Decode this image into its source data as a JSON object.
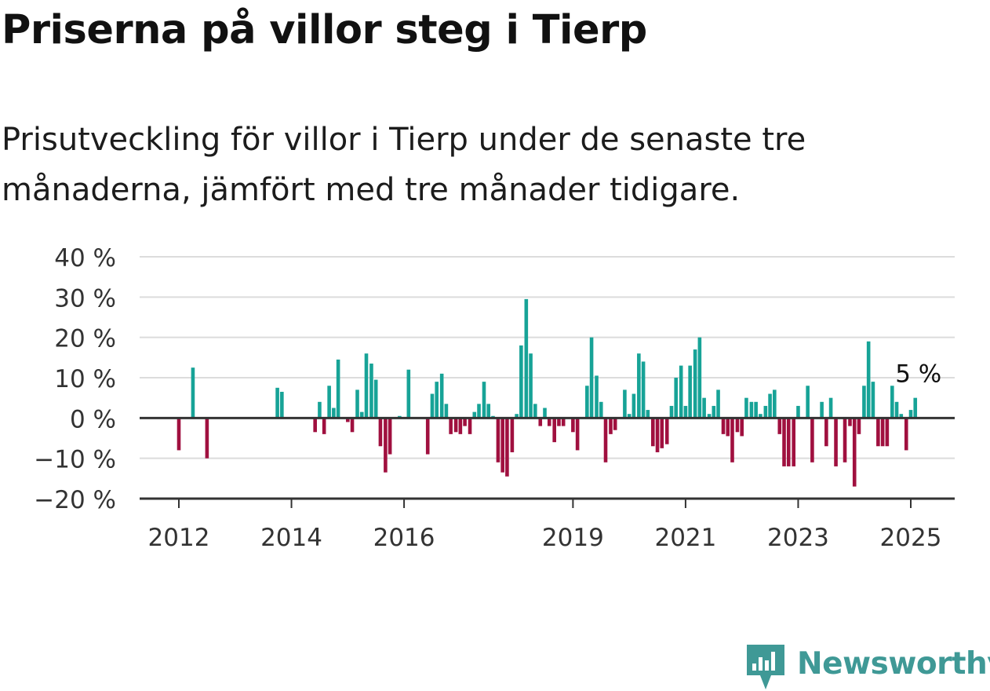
{
  "title": "Priserna på villor steg i Tierp",
  "subtitle": "Prisutveckling för villor i Tierp under de senaste tre månaderna, jämfört med tre månader tidigare.",
  "brand": "Newsworthy",
  "colors": {
    "positive": "#17a397",
    "negative": "#a0103f",
    "grid": "#dcdcdc",
    "axis": "#333333",
    "brand": "#3f9996"
  },
  "chart_data": {
    "type": "bar",
    "ylim": [
      -20,
      40
    ],
    "yticks": [
      40,
      30,
      20,
      10,
      0,
      -10,
      -20
    ],
    "ytick_labels": [
      "40 %",
      "30 %",
      "20 %",
      "10 %",
      "0 %",
      "−10 %",
      "−20 %"
    ],
    "xtick_labels": [
      "2012",
      "2014",
      "2016",
      "2019",
      "2021",
      "2023",
      "2025"
    ],
    "xtick_values": [
      2012.0,
      2014.0,
      2016.0,
      2019.0,
      2021.0,
      2023.0,
      2025.0
    ],
    "x_range": [
      2010.75,
      2025.75
    ],
    "grid": true,
    "annotation": "5 %",
    "unit": "decimal year",
    "x": [
      2012.0,
      2012.25,
      2012.5,
      2013.75,
      2013.83,
      2014.42,
      2014.5,
      2014.58,
      2014.67,
      2014.75,
      2014.83,
      2015.0,
      2015.08,
      2015.17,
      2015.25,
      2015.33,
      2015.42,
      2015.5,
      2015.58,
      2015.67,
      2015.75,
      2015.92,
      2016.08,
      2016.42,
      2016.5,
      2016.58,
      2016.67,
      2016.75,
      2016.83,
      2016.92,
      2017.0,
      2017.08,
      2017.17,
      2017.25,
      2017.33,
      2017.42,
      2017.5,
      2017.58,
      2017.67,
      2017.75,
      2017.83,
      2017.92,
      2018.0,
      2018.08,
      2018.17,
      2018.25,
      2018.33,
      2018.42,
      2018.5,
      2018.58,
      2018.67,
      2018.75,
      2018.83,
      2019.0,
      2019.08,
      2019.25,
      2019.33,
      2019.42,
      2019.5,
      2019.58,
      2019.67,
      2019.75,
      2019.92,
      2020.0,
      2020.08,
      2020.17,
      2020.25,
      2020.33,
      2020.42,
      2020.5,
      2020.58,
      2020.67,
      2020.75,
      2020.83,
      2020.92,
      2021.0,
      2021.08,
      2021.17,
      2021.25,
      2021.33,
      2021.42,
      2021.5,
      2021.58,
      2021.67,
      2021.75,
      2021.83,
      2021.92,
      2022.0,
      2022.08,
      2022.17,
      2022.25,
      2022.33,
      2022.42,
      2022.5,
      2022.58,
      2022.67,
      2022.75,
      2022.83,
      2022.92,
      2023.0,
      2023.17,
      2023.25,
      2023.42,
      2023.5,
      2023.58,
      2023.67,
      2023.83,
      2023.92,
      2024.0,
      2024.08,
      2024.17,
      2024.25,
      2024.33,
      2024.42,
      2024.5,
      2024.58,
      2024.67,
      2024.75,
      2024.83,
      2024.92,
      2025.0,
      2025.08
    ],
    "values": [
      -8,
      12.5,
      -10,
      7.5,
      6.5,
      -3.5,
      4,
      -4,
      8,
      2.5,
      14.5,
      -1,
      -3.5,
      7,
      1.5,
      16,
      13.5,
      9.5,
      -7,
      -13.5,
      -9,
      0.5,
      12,
      -9,
      6,
      9,
      11,
      3.5,
      -4,
      -3.5,
      -4,
      -2,
      -4,
      1.5,
      3.5,
      9,
      3.5,
      0.5,
      -11,
      -13.5,
      -14.5,
      -8.5,
      1,
      18,
      29.5,
      16,
      3.5,
      -2,
      2.5,
      -2,
      -6,
      -2,
      -2,
      -3.5,
      -8,
      8,
      20,
      10.5,
      4,
      -11,
      -4,
      -3,
      7,
      1,
      6,
      16,
      14,
      2,
      -7,
      -8.5,
      -7.5,
      -6.5,
      3,
      10,
      13,
      3,
      13,
      17,
      20,
      5,
      1,
      3,
      7,
      -4,
      -4.5,
      -11,
      -3.5,
      -4.5,
      5,
      4,
      4,
      1,
      3,
      6,
      7,
      -4,
      -12,
      -12,
      -12,
      3,
      8,
      -11,
      4,
      -7,
      5,
      -12,
      -11,
      -2,
      -17,
      -4,
      8,
      19,
      9,
      -7,
      -7,
      -7,
      8,
      4,
      1,
      -8,
      2,
      5
    ]
  }
}
